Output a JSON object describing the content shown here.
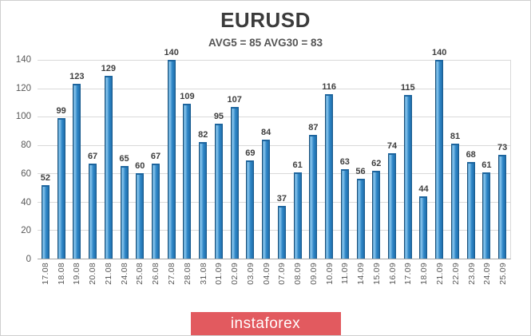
{
  "header": {
    "title": "EURUSD",
    "subtitle": "AVG5 = 85 AVG30 = 83"
  },
  "chart_data": {
    "type": "bar",
    "title": "EURUSD",
    "subtitle": "AVG5 = 85 AVG30 = 83",
    "categories": [
      "17.08",
      "18.08",
      "19.08",
      "20.08",
      "21.08",
      "24.08",
      "25.08",
      "26.08",
      "27.08",
      "28.08",
      "31.08",
      "01.09",
      "02.09",
      "03.09",
      "04.09",
      "07.09",
      "08.09",
      "09.09",
      "10.09",
      "11.09",
      "14.09",
      "15.09",
      "16.09",
      "17.09",
      "18.09",
      "21.09",
      "22.09",
      "23.09",
      "24.09",
      "25.09"
    ],
    "values": [
      52,
      99,
      123,
      67,
      129,
      65,
      60,
      67,
      140,
      109,
      82,
      95,
      107,
      69,
      84,
      37,
      61,
      87,
      116,
      63,
      56,
      62,
      74,
      115,
      44,
      140,
      81,
      68,
      61,
      73
    ],
    "xlabel": "",
    "ylabel": "",
    "ylim": [
      0,
      140
    ],
    "yticks": [
      0,
      20,
      40,
      60,
      80,
      100,
      120,
      140
    ],
    "grid": true,
    "legend": "none",
    "bar_color": "#2e86c6",
    "bar_highlight": "#8ac6ee",
    "bar_edge": "#1b4e76",
    "gridline_color": "#d9d9d9",
    "axis_text_color": "#595959",
    "value_label_color": "#3f3f3f"
  },
  "footer": {
    "brand": "instaforex",
    "banner_color": "#e25a5f"
  }
}
